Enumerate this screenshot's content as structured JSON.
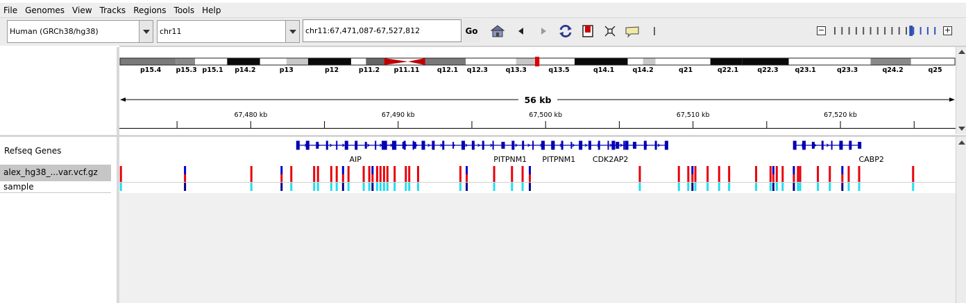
{
  "menu": [
    "File",
    "Genomes",
    "View",
    "Tracks",
    "Regions",
    "Tools",
    "Help"
  ],
  "toolbar": {
    "genome": "Human (GRCh38/hg38)",
    "chromosome": "chr11",
    "locus": "chr11:67,471,087-67,527,812",
    "go_label": "Go",
    "icons": [
      "home-icon",
      "back-arrow-icon",
      "forward-arrow-icon",
      "refresh-icon",
      "roi-icon",
      "resize-icon",
      "popup-info-icon",
      "ruler-divider-icon"
    ],
    "zoom_level": 11,
    "zoom_ticks": 15
  },
  "ideogram": {
    "bands": [
      {
        "name": "p15.4",
        "stain": "gpos75"
      },
      {
        "name": "p15.3",
        "stain": "gpos50"
      },
      {
        "name": "p15.1",
        "stain": "gneg"
      },
      {
        "name": "p14.2",
        "stain": "gpos100"
      },
      {
        "name": "p13",
        "stain": "gneg"
      },
      {
        "name": "p12",
        "stain": "gpos100"
      },
      {
        "name": "p11.2",
        "stain": "gneg"
      },
      {
        "name": "p11.11",
        "stain": "acen"
      },
      {
        "name": "q12.1",
        "stain": "gpos75"
      },
      {
        "name": "q12.3",
        "stain": "gneg"
      },
      {
        "name": "q13.3",
        "stain": "gneg"
      },
      {
        "name": "q13.5",
        "stain": "gneg"
      },
      {
        "name": "q14.1",
        "stain": "gpos100"
      },
      {
        "name": "q14.2",
        "stain": "gneg"
      },
      {
        "name": "q21",
        "stain": "gneg"
      },
      {
        "name": "q22.1",
        "stain": "gpos100"
      },
      {
        "name": "q22.3",
        "stain": "gpos100"
      },
      {
        "name": "q23.1",
        "stain": "gneg"
      },
      {
        "name": "q23.3",
        "stain": "gneg"
      },
      {
        "name": "q24.2",
        "stain": "gpos50"
      },
      {
        "name": "q25",
        "stain": "gneg"
      }
    ],
    "highlight_color": "#e00000"
  },
  "ruler": {
    "span_label": "56 kb",
    "start": 67471087,
    "end": 67527812,
    "ticks": [
      "67,480 kb",
      "67,490 kb",
      "67,500 kb",
      "67,510 kb",
      "67,520 kb"
    ],
    "tick_positions": [
      67480000,
      67490000,
      67500000,
      67510000,
      67520000
    ],
    "minor_positions": [
      67475000,
      67485000,
      67495000,
      67505000,
      67515000,
      67525000
    ]
  },
  "tracks": {
    "refseq_label": "Refseq Genes",
    "vcf_label": "alex_hg38_...var.vcf.gz",
    "sample_label": "sample"
  },
  "genes": [
    {
      "name": "AIP",
      "start": 67483200,
      "end": 67491100
    },
    {
      "name": "PITPNM1",
      "start": 67489000,
      "end": 67500500
    },
    {
      "name": "PITPNM1",
      "start": 67500500,
      "end": 67505500
    },
    {
      "name": "CDK2AP2",
      "start": 67504600,
      "end": 67508200
    },
    {
      "name": "CABP2",
      "start": 67516900,
      "end": 67521300
    }
  ],
  "gene_labels": [
    {
      "name": "AIP",
      "pos": 67487100
    },
    {
      "name": "PITPNM1",
      "pos": 67497600
    },
    {
      "name": "PITPNM1",
      "pos": 67500900
    },
    {
      "name": "CDK2AP2",
      "pos": 67504400
    },
    {
      "name": "CABP2",
      "pos": 67522100
    }
  ],
  "colors": {
    "gene": "#0000b4",
    "variant_hom": "#e8000b",
    "variant_het": "#0000c8",
    "genotype_het": "#22ddee",
    "genotype_hom": "#00008b",
    "chrom_highlight": "#e00000"
  },
  "variants": [
    {
      "pos": 67471120,
      "af": "hom",
      "gt": "het"
    },
    {
      "pos": 67475470,
      "af": "het",
      "gt": "hom"
    },
    {
      "pos": 67479970,
      "af": "hom",
      "gt": "het"
    },
    {
      "pos": 67482020,
      "af": "het",
      "gt": "hom"
    },
    {
      "pos": 67482680,
      "af": "hom",
      "gt": "het"
    },
    {
      "pos": 67484230,
      "af": "hom",
      "gt": "het"
    },
    {
      "pos": 67484490,
      "af": "hom",
      "gt": "het"
    },
    {
      "pos": 67485390,
      "af": "hom",
      "gt": "het"
    },
    {
      "pos": 67485760,
      "af": "hom",
      "gt": "het"
    },
    {
      "pos": 67486190,
      "af": "het",
      "gt": "hom"
    },
    {
      "pos": 67486560,
      "af": "hom",
      "gt": "het"
    },
    {
      "pos": 67487590,
      "af": "hom",
      "gt": "het"
    },
    {
      "pos": 67487970,
      "af": "hom",
      "gt": "het"
    },
    {
      "pos": 67488190,
      "af": "het",
      "gt": "hom"
    },
    {
      "pos": 67488500,
      "af": "hom",
      "gt": "het"
    },
    {
      "pos": 67488730,
      "af": "hom",
      "gt": "het"
    },
    {
      "pos": 67488970,
      "af": "hom",
      "gt": "het"
    },
    {
      "pos": 67489200,
      "af": "hom",
      "gt": "het"
    },
    {
      "pos": 67489690,
      "af": "hom",
      "gt": "het"
    },
    {
      "pos": 67490450,
      "af": "hom",
      "gt": "het"
    },
    {
      "pos": 67490680,
      "af": "hom",
      "gt": "het"
    },
    {
      "pos": 67491280,
      "af": "hom",
      "gt": "het"
    },
    {
      "pos": 67494150,
      "af": "hom",
      "gt": "het"
    },
    {
      "pos": 67494580,
      "af": "het",
      "gt": "hom"
    },
    {
      "pos": 67496440,
      "af": "hom",
      "gt": "het"
    },
    {
      "pos": 67497650,
      "af": "hom",
      "gt": "het"
    },
    {
      "pos": 67498370,
      "af": "hom",
      "gt": "het"
    },
    {
      "pos": 67498860,
      "af": "het",
      "gt": "hom"
    },
    {
      "pos": 67506320,
      "af": "hom",
      "gt": "het"
    },
    {
      "pos": 67508970,
      "af": "hom",
      "gt": "het"
    },
    {
      "pos": 67509610,
      "af": "hom",
      "gt": "het"
    },
    {
      "pos": 67509890,
      "af": "het",
      "gt": "hom"
    },
    {
      "pos": 67510090,
      "af": "hom",
      "gt": "het"
    },
    {
      "pos": 67510920,
      "af": "hom",
      "gt": "het"
    },
    {
      "pos": 67511700,
      "af": "hom",
      "gt": "het"
    },
    {
      "pos": 67512380,
      "af": "hom",
      "gt": "het"
    },
    {
      "pos": 67514210,
      "af": "hom",
      "gt": "het"
    },
    {
      "pos": 67515190,
      "af": "hom",
      "gt": "het"
    },
    {
      "pos": 67515380,
      "af": "het",
      "gt": "hom"
    },
    {
      "pos": 67515610,
      "af": "hom",
      "gt": "het"
    },
    {
      "pos": 67516010,
      "af": "hom",
      "gt": "het"
    },
    {
      "pos": 67516770,
      "af": "het",
      "gt": "hom"
    },
    {
      "pos": 67517050,
      "af": "hom",
      "gt": "het"
    },
    {
      "pos": 67517200,
      "af": "hom",
      "gt": "het"
    },
    {
      "pos": 67518400,
      "af": "hom",
      "gt": "het"
    },
    {
      "pos": 67519210,
      "af": "hom",
      "gt": "het"
    },
    {
      "pos": 67520060,
      "af": "het",
      "gt": "hom"
    },
    {
      "pos": 67520490,
      "af": "hom",
      "gt": "het"
    },
    {
      "pos": 67521200,
      "af": "hom",
      "gt": "het"
    },
    {
      "pos": 67524860,
      "af": "hom",
      "gt": "het"
    }
  ]
}
